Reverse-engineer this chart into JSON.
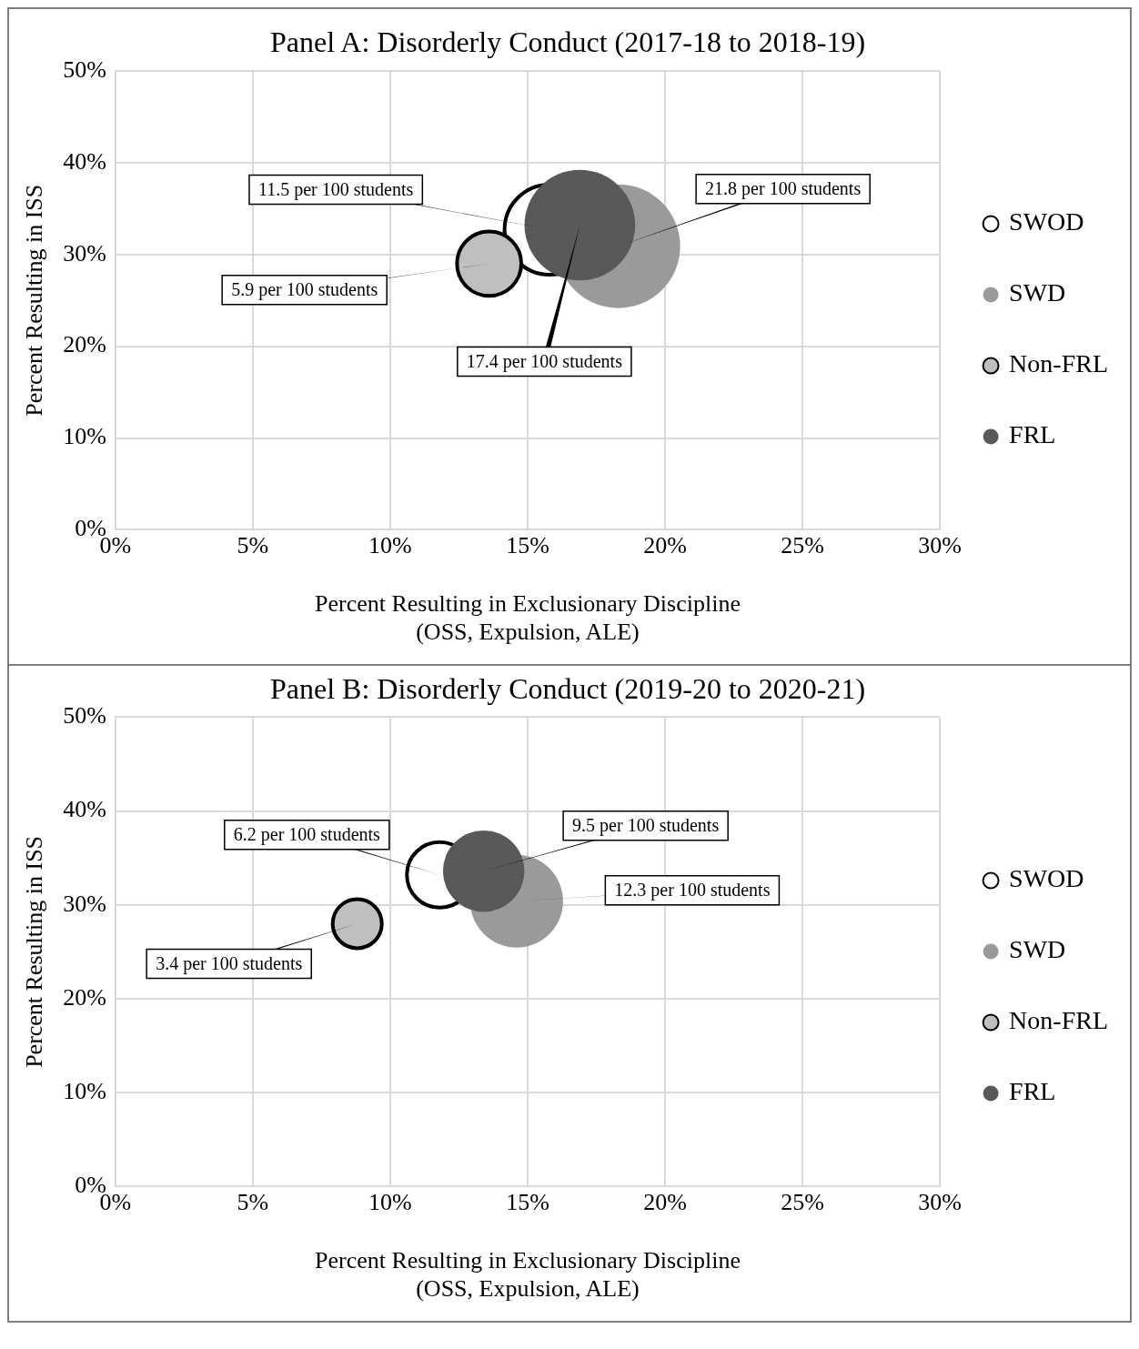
{
  "chart_data": [
    {
      "type": "bubble",
      "title": "Panel A: Disorderly Conduct (2017-18 to 2018-19)",
      "xlabel": "Percent Resulting in Exclusionary Discipline\n(OSS, Expulsion, ALE)",
      "ylabel": "Percent Resulting in ISS",
      "series": [
        {
          "name": "SWOD",
          "color": "#ffffff",
          "x": [
            15.8
          ],
          "values": [
            32.7
          ],
          "sizes": [
            0.53
          ]
        },
        {
          "name": "SWD",
          "color": "#9a9a9a",
          "x": [
            18.3
          ],
          "values": [
            30.9
          ],
          "sizes": [
            1
          ]
        },
        {
          "name": "Non-FRL",
          "color": "#bfbfbf",
          "x": [
            13.6
          ],
          "values": [
            29.0
          ],
          "sizes": [
            0.27
          ]
        },
        {
          "name": "FRL",
          "color": "#595959",
          "x": [
            16.9
          ],
          "values": [
            33.2
          ],
          "sizes": [
            0.8
          ]
        }
      ],
      "annotations": [
        {
          "text": "11.5 per 100 students",
          "x": 15.8,
          "y": 32.7
        },
        {
          "text": "21.8 per 100 students",
          "x": 18.3,
          "y": 30.9
        },
        {
          "text": "5.9 per 100 students",
          "x": 13.6,
          "y": 29.0
        },
        {
          "text": "17.4 per 100 students",
          "x": 16.9,
          "y": 33.2
        }
      ],
      "xlim": [
        0,
        30
      ],
      "xticks": [
        {
          "value": 0,
          "label": "0%"
        },
        {
          "value": 5,
          "label": "5%"
        },
        {
          "value": 10,
          "label": "10%"
        },
        {
          "value": 15,
          "label": "15%"
        },
        {
          "value": 20,
          "label": "20%"
        },
        {
          "value": 25,
          "label": "25%"
        },
        {
          "value": 30,
          "label": "30%"
        }
      ],
      "ylim": [
        0,
        50
      ],
      "yticks": [
        {
          "value": 0,
          "label": "0%"
        },
        {
          "value": 10,
          "label": "10%"
        },
        {
          "value": 20,
          "label": "20%"
        },
        {
          "value": 30,
          "label": "30%"
        },
        {
          "value": 40,
          "label": "40%"
        },
        {
          "value": 50,
          "label": "50%"
        }
      ],
      "grid": true,
      "legend": "right"
    },
    {
      "type": "bubble",
      "title": "Panel B: Disorderly Conduct (2019-20 to 2020-21)",
      "xlabel": "Percent Resulting in Exclusionary Discipline\n(OSS, Expulsion, ALE)",
      "ylabel": "Percent Resulting in ISS",
      "series": [
        {
          "name": "SWOD",
          "color": "#ffffff",
          "x": [
            11.8
          ],
          "values": [
            33.2
          ],
          "sizes": [
            0.5
          ]
        },
        {
          "name": "SWD",
          "color": "#9a9a9a",
          "x": [
            14.6
          ],
          "values": [
            30.4
          ],
          "sizes": [
            1
          ]
        },
        {
          "name": "Non-FRL",
          "color": "#bfbfbf",
          "x": [
            8.8
          ],
          "values": [
            28.0
          ],
          "sizes": [
            0.28
          ]
        },
        {
          "name": "FRL",
          "color": "#595959",
          "x": [
            13.4
          ],
          "values": [
            33.6
          ],
          "sizes": [
            0.77
          ]
        }
      ],
      "annotations": [
        {
          "text": "6.2 per 100 students",
          "x": 11.8,
          "y": 33.2
        },
        {
          "text": "12.3 per 100 students",
          "x": 14.6,
          "y": 30.4
        },
        {
          "text": "3.4 per 100 students",
          "x": 8.8,
          "y": 28.0
        },
        {
          "text": "9.5 per 100 students",
          "x": 13.4,
          "y": 33.6
        }
      ],
      "xlim": [
        0,
        30
      ],
      "xticks": [
        {
          "value": 0,
          "label": "0%"
        },
        {
          "value": 5,
          "label": "5%"
        },
        {
          "value": 10,
          "label": "10%"
        },
        {
          "value": 15,
          "label": "15%"
        },
        {
          "value": 20,
          "label": "20%"
        },
        {
          "value": 25,
          "label": "25%"
        },
        {
          "value": 30,
          "label": "30%"
        }
      ],
      "ylim": [
        0,
        50
      ],
      "yticks": [
        {
          "value": 0,
          "label": "0%"
        },
        {
          "value": 10,
          "label": "10%"
        },
        {
          "value": 20,
          "label": "20%"
        },
        {
          "value": 30,
          "label": "30%"
        },
        {
          "value": 40,
          "label": "40%"
        },
        {
          "value": 50,
          "label": "50%"
        }
      ],
      "grid": true,
      "legend": "right"
    }
  ]
}
